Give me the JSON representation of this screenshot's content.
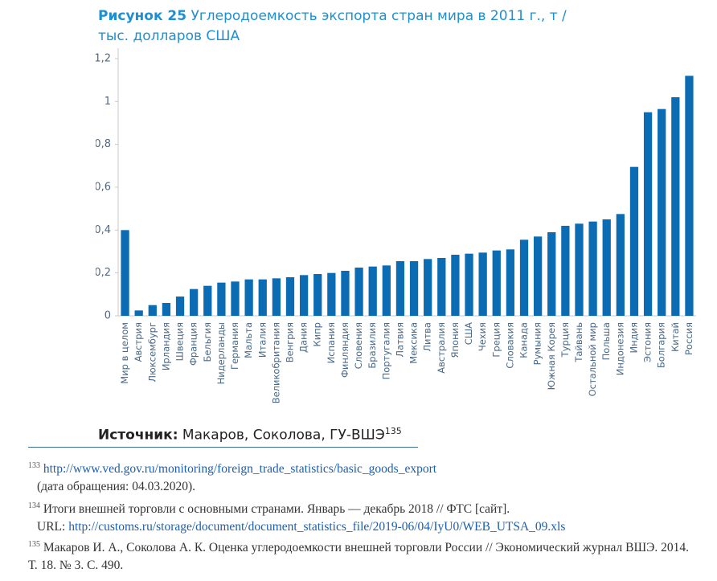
{
  "chart_data": {
    "type": "bar",
    "figure_label": "Рисунок 25",
    "title": "Углеродоемкость экспорта стран мира в 2011 г., т / тыс. долларов США",
    "categories": [
      "Мир в целом",
      "Австрия",
      "Люксембург",
      "Ирландия",
      "Швеция",
      "Франция",
      "Бельгия",
      "Нидерланды",
      "Германия",
      "Мальта",
      "Италия",
      "Великобритания",
      "Венгрия",
      "Дания",
      "Кипр",
      "Испания",
      "Финляндия",
      "Словения",
      "Бразилия",
      "Португалия",
      "Латвия",
      "Мексика",
      "Литва",
      "Австралия",
      "Япония",
      "США",
      "Чехия",
      "Греция",
      "Словакия",
      "Канада",
      "Румыния",
      "Южная Корея",
      "Турция",
      "Тайвань",
      "Остальной мир",
      "Польша",
      "Индонезия",
      "Индия",
      "Эстония",
      "Болгария",
      "Китай",
      "Россия"
    ],
    "values": [
      0.4,
      0.025,
      0.05,
      0.06,
      0.09,
      0.125,
      0.14,
      0.155,
      0.16,
      0.17,
      0.17,
      0.175,
      0.18,
      0.19,
      0.195,
      0.2,
      0.21,
      0.225,
      0.23,
      0.235,
      0.255,
      0.255,
      0.265,
      0.27,
      0.285,
      0.29,
      0.295,
      0.305,
      0.31,
      0.355,
      0.37,
      0.39,
      0.42,
      0.43,
      0.44,
      0.45,
      0.475,
      0.695,
      0.95,
      0.965,
      1.02,
      1.12
    ],
    "color": "#0b6cb4",
    "ylim": [
      0,
      1.2
    ],
    "yticks": [
      0,
      {
        "value": 0.2,
        "label": "0,2"
      },
      {
        "value": 0.4,
        "label": "0,4"
      },
      {
        "value": 0.6,
        "label": "0,6"
      },
      {
        "value": 0.8,
        "label": "0,8"
      },
      1,
      {
        "value": 1.2,
        "label": "1,2"
      }
    ],
    "grid": false
  },
  "source": {
    "label": "Источник:",
    "text": "Макаров, Соколова, ГУ-ВШЭ",
    "note": "135"
  },
  "footnotes": [
    {
      "number": "133",
      "link": "http://www.ved.gov.ru/monitoring/foreign_trade_statistics/basic_goods_export",
      "text": "(дата обращения: 04.03.2020)."
    },
    {
      "number": "134",
      "text": "Итоги внешней торговли с основными странами. Январь — декабрь 2018 // ФТС [сайт].",
      "url_label": "URL:",
      "link": "http://customs.ru/storage/document/document_statistics_file/2019-06/04/IyU0/WEB_UTSA_09.xls"
    },
    {
      "number": "135",
      "text": "Макаров И. А., Соколова А. К. Оценка углеродоемкости внешней торговли России // Экономический журнал ВШЭ. 2014. Т. 18. № 3. С. 490."
    }
  ]
}
